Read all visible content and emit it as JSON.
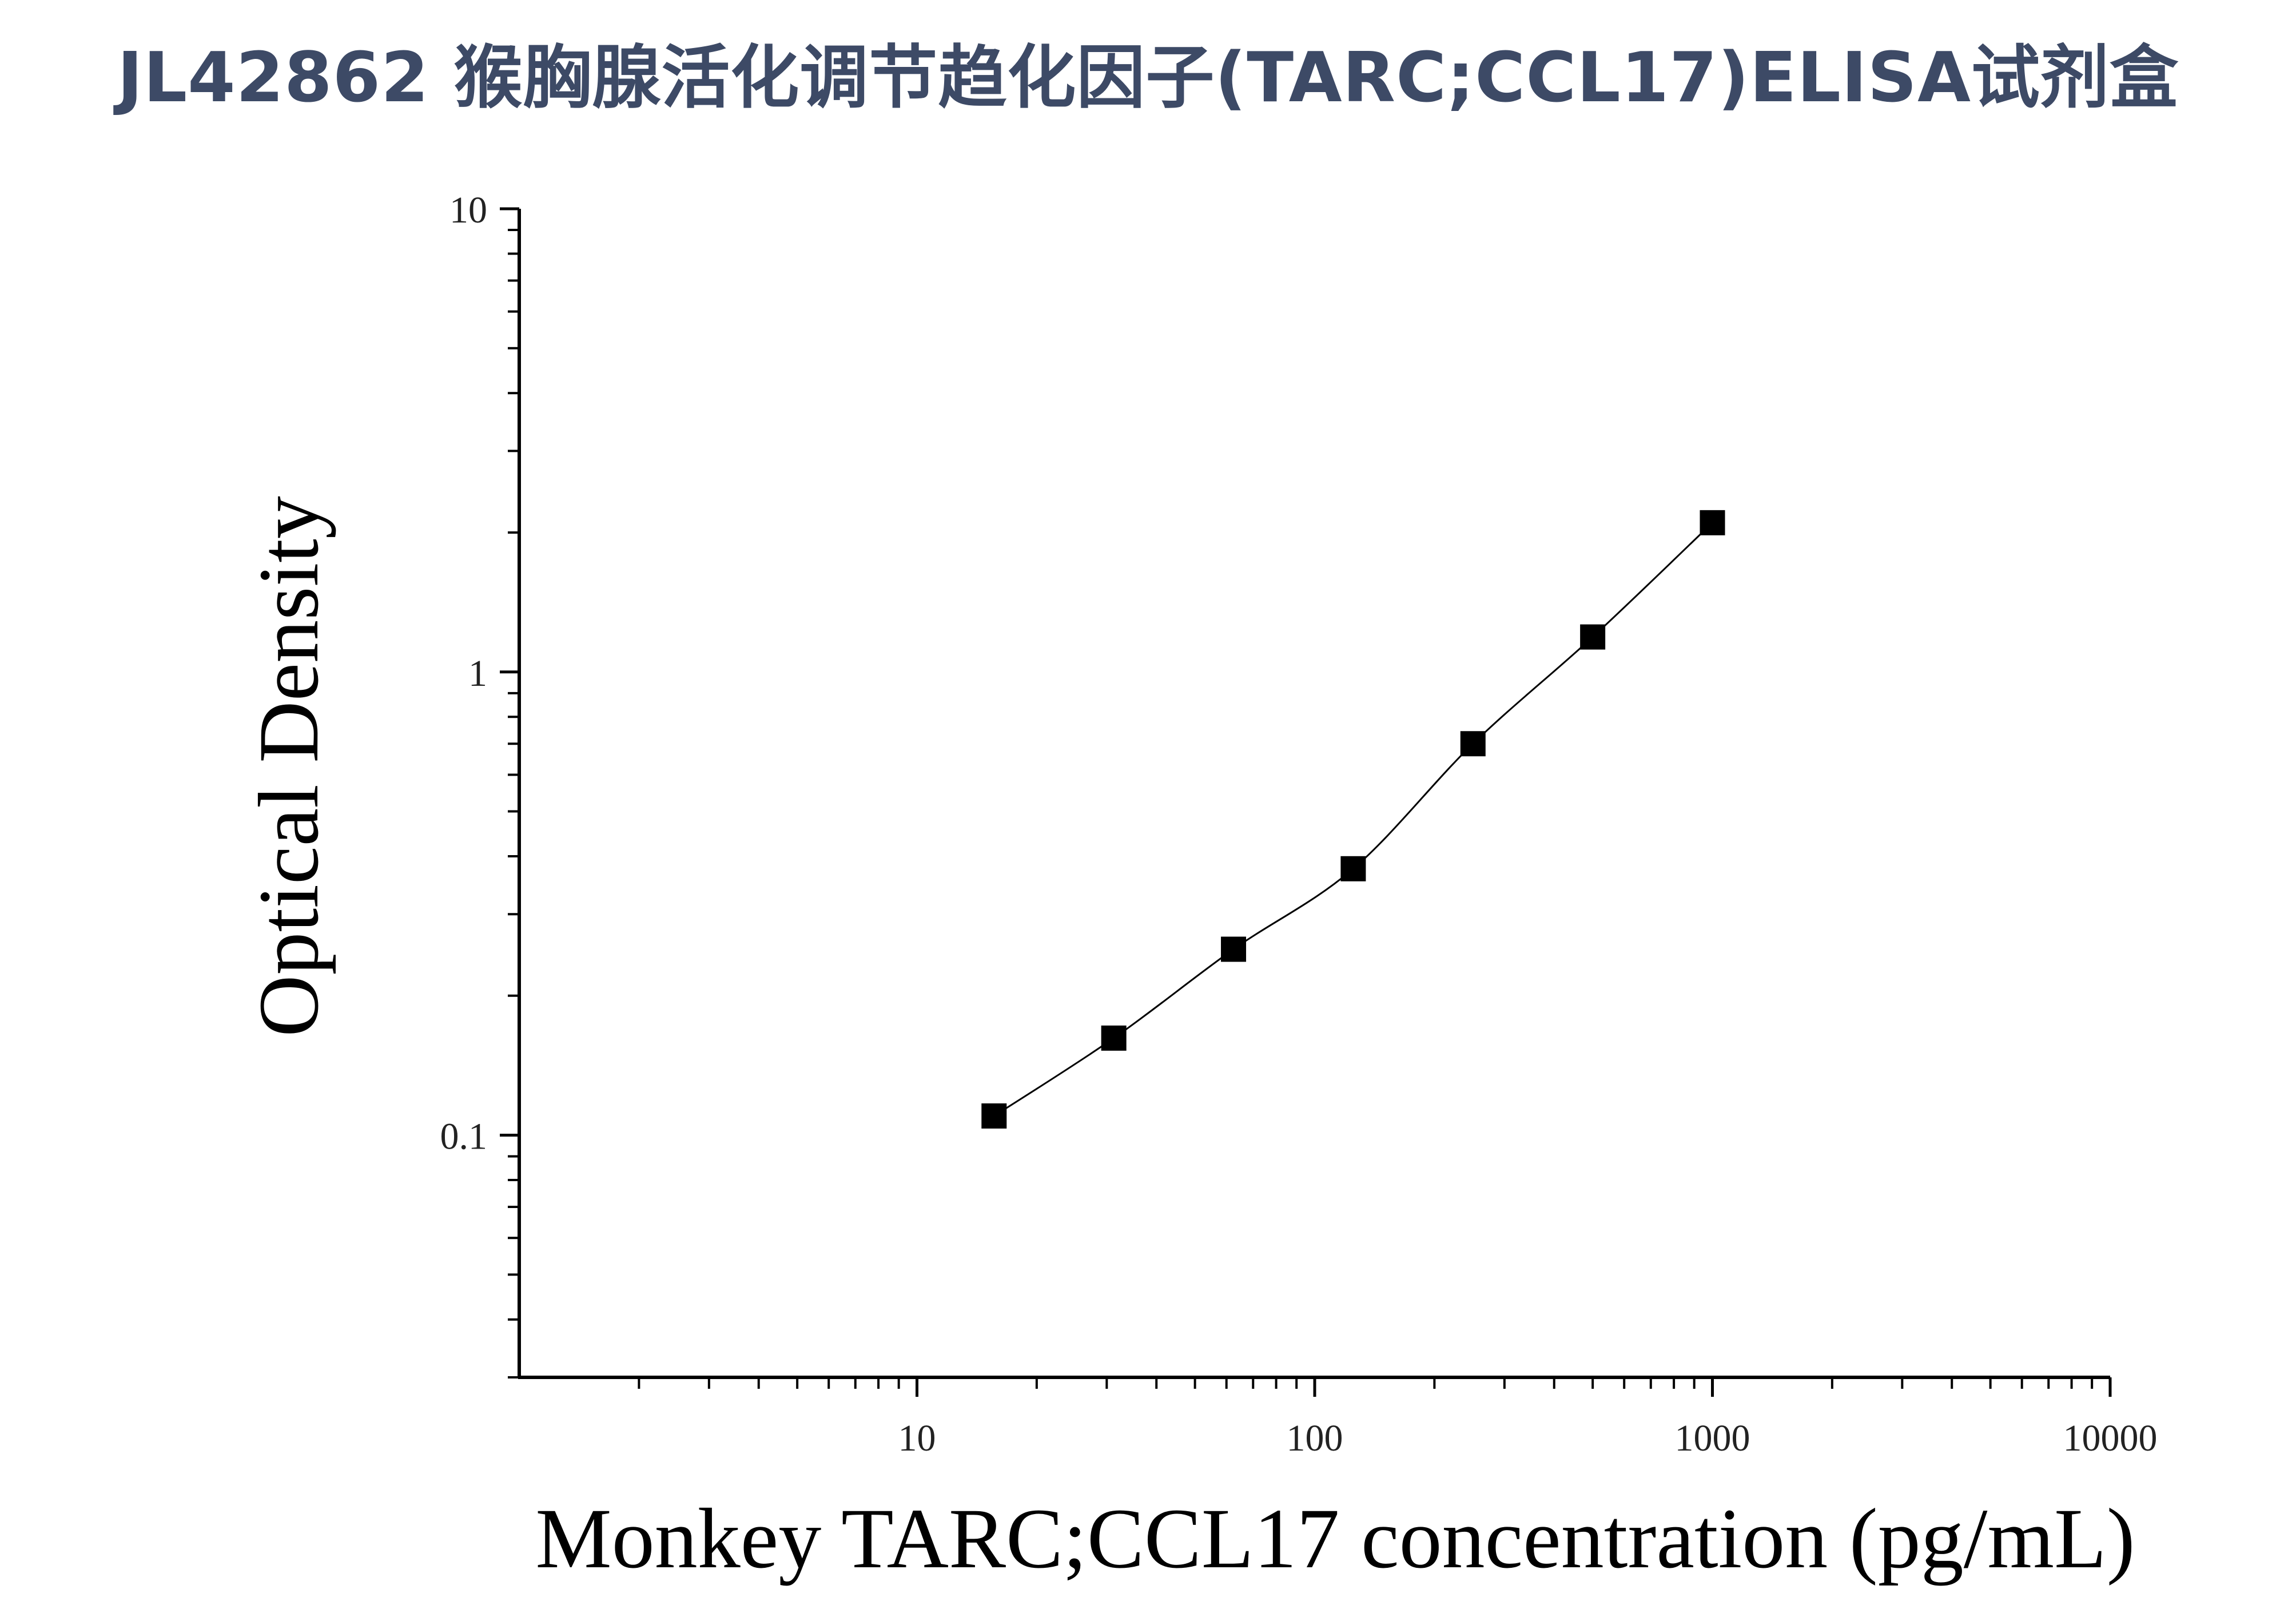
{
  "title": "JL42862 猴胸腺活化调节趋化因子(TARC;CCL17)ELISA试剂盒",
  "chart_data": {
    "type": "scatter",
    "xlabel": "Monkey TARC;CCL17 concentration (pg/mL)",
    "ylabel": "Optical Density",
    "x_scale": "log",
    "y_scale": "log",
    "xlim": [
      1,
      10000
    ],
    "ylim": [
      0.03,
      10
    ],
    "x_ticks": [
      "10",
      "100",
      "1000",
      "10000"
    ],
    "y_ticks": [
      "0.1",
      "1",
      "10"
    ],
    "grid": false,
    "series": [
      {
        "marker": "square",
        "fit_line": true,
        "color": "#000000",
        "x": [
          15.625,
          31.25,
          62.5,
          125,
          250,
          500,
          1000
        ],
        "y": [
          0.11,
          0.162,
          0.252,
          0.376,
          0.7,
          1.19,
          2.1
        ]
      }
    ]
  }
}
